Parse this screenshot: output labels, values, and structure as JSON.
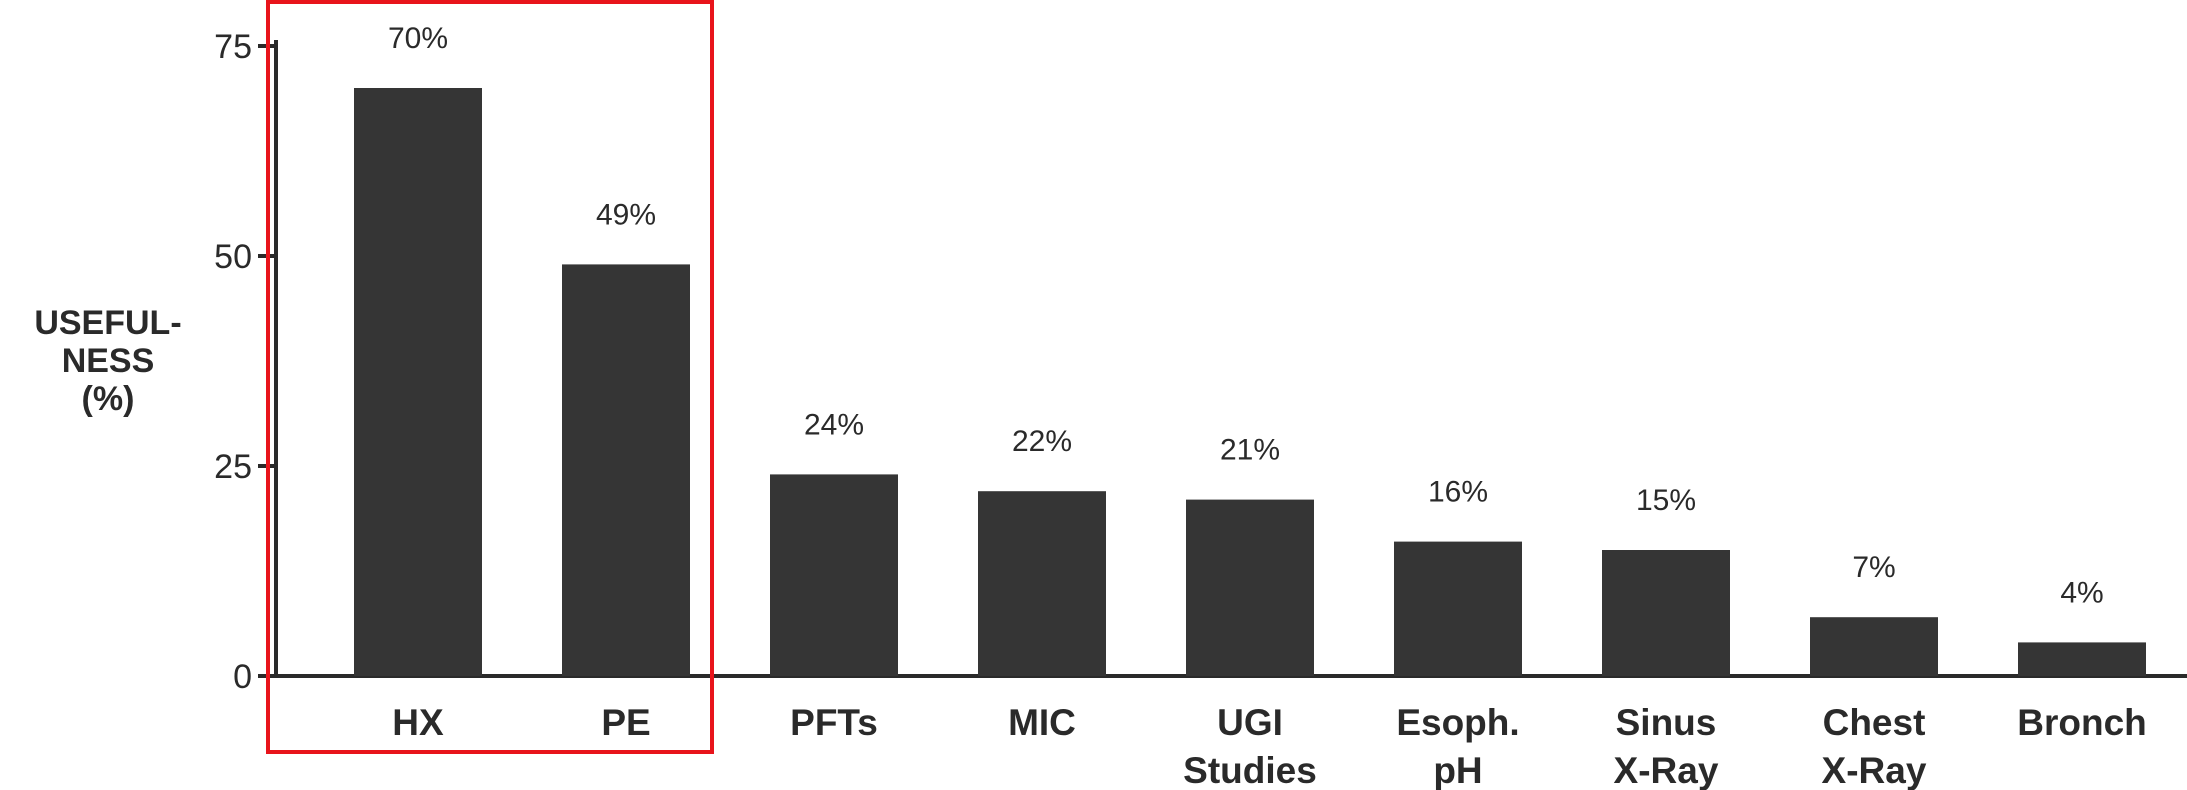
{
  "chart_data": {
    "type": "bar",
    "title": "",
    "xlabel": "",
    "ylabel": [
      "USEFUL-",
      "NESS",
      "(%)"
    ],
    "ylim": [
      0,
      75
    ],
    "yticks": [
      0,
      25,
      50,
      75
    ],
    "categories": [
      [
        "HX"
      ],
      [
        "PE"
      ],
      [
        "PFTs"
      ],
      [
        "MIC"
      ],
      [
        "UGI",
        "Studies"
      ],
      [
        "Esoph.",
        "pH"
      ],
      [
        "Sinus",
        "X-Ray"
      ],
      [
        "Chest",
        "X-Ray"
      ],
      [
        "Bronch"
      ]
    ],
    "values": [
      70,
      49,
      24,
      22,
      21,
      16,
      15,
      7,
      4
    ],
    "value_labels": [
      "70%",
      "49%",
      "24%",
      "22%",
      "21%",
      "16%",
      "15%",
      "7%",
      "4%"
    ],
    "grid": false,
    "highlight": {
      "categories": [
        "HX",
        "PE"
      ],
      "color": "#e8141b"
    },
    "bar_color": "#353535"
  }
}
